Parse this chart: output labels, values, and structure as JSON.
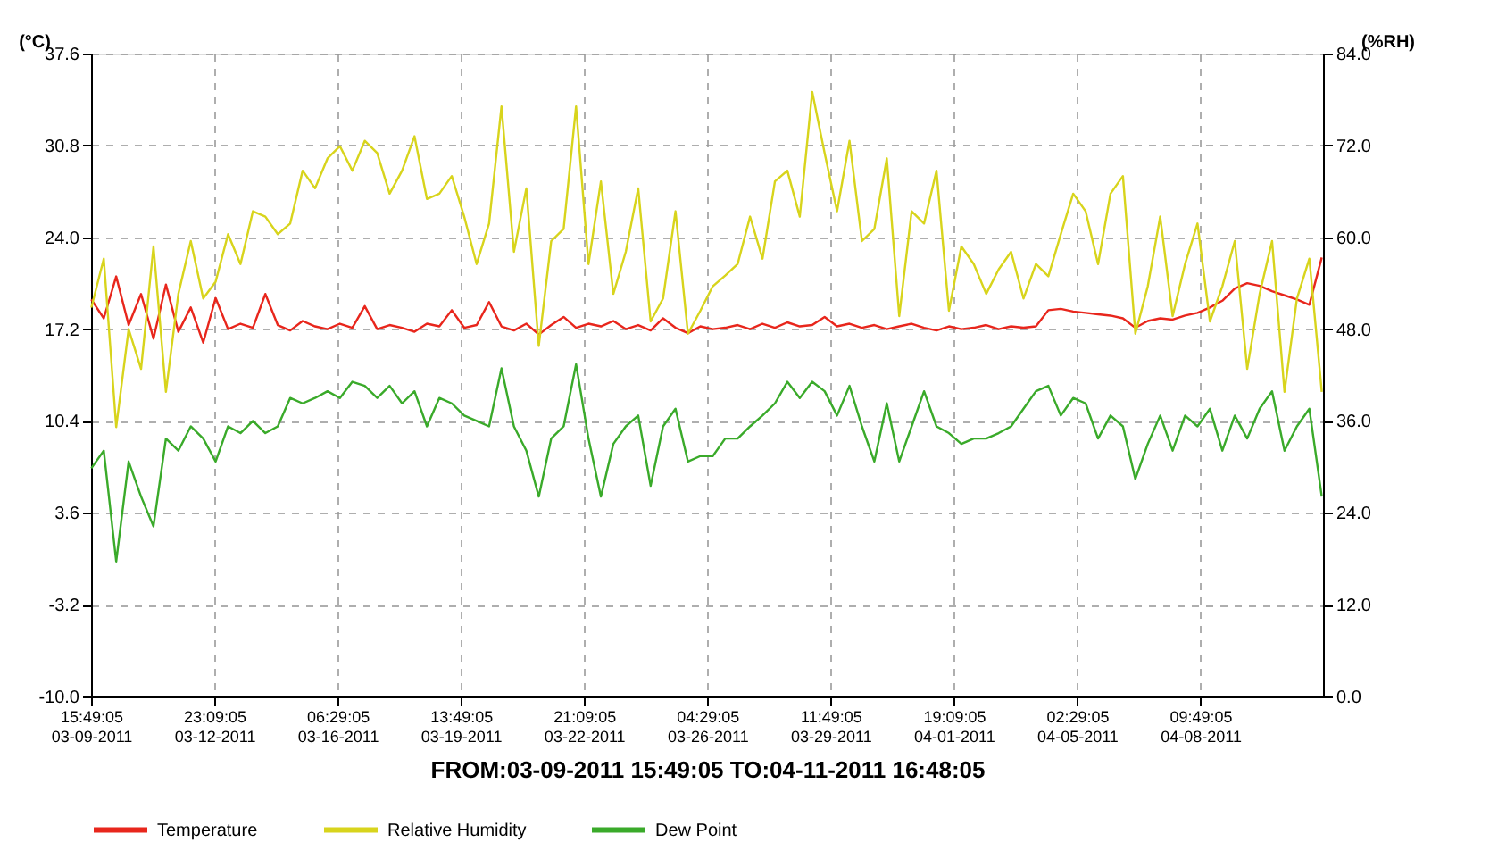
{
  "chart_data": {
    "type": "line",
    "xlabel": "FROM:03-09-2011 15:49:05     TO:04-11-2011 16:48:05",
    "ylabel": "(°C)",
    "y2label": "(%RH)",
    "x": [
      "2011-03-09T16:00",
      "2011-03-10T00:00",
      "2011-03-10T08:00",
      "2011-03-10T16:00",
      "2011-03-11T00:00",
      "2011-03-11T08:00",
      "2011-03-11T16:00",
      "2011-03-12T00:00",
      "2011-03-12T08:00",
      "2011-03-12T16:00",
      "2011-03-13T00:00",
      "2011-03-13T08:00",
      "2011-03-13T16:00",
      "2011-03-14T00:00",
      "2011-03-14T08:00",
      "2011-03-14T16:00",
      "2011-03-15T00:00",
      "2011-03-15T08:00",
      "2011-03-15T16:00",
      "2011-03-16T00:00",
      "2011-03-16T08:00",
      "2011-03-16T16:00",
      "2011-03-17T00:00",
      "2011-03-17T08:00",
      "2011-03-17T16:00",
      "2011-03-18T00:00",
      "2011-03-18T08:00",
      "2011-03-18T16:00",
      "2011-03-19T00:00",
      "2011-03-19T08:00",
      "2011-03-19T16:00",
      "2011-03-20T00:00",
      "2011-03-20T08:00",
      "2011-03-20T16:00",
      "2011-03-21T00:00",
      "2011-03-21T08:00",
      "2011-03-21T16:00",
      "2011-03-22T00:00",
      "2011-03-22T08:00",
      "2011-03-22T16:00",
      "2011-03-23T00:00",
      "2011-03-23T08:00",
      "2011-03-23T16:00",
      "2011-03-24T00:00",
      "2011-03-24T08:00",
      "2011-03-24T16:00",
      "2011-03-25T00:00",
      "2011-03-25T08:00",
      "2011-03-25T16:00",
      "2011-03-26T00:00",
      "2011-03-26T08:00",
      "2011-03-26T16:00",
      "2011-03-27T00:00",
      "2011-03-27T08:00",
      "2011-03-27T16:00",
      "2011-03-28T00:00",
      "2011-03-28T08:00",
      "2011-03-28T16:00",
      "2011-03-29T00:00",
      "2011-03-29T08:00",
      "2011-03-29T16:00",
      "2011-03-30T00:00",
      "2011-03-30T08:00",
      "2011-03-30T16:00",
      "2011-03-31T00:00",
      "2011-03-31T08:00",
      "2011-03-31T16:00",
      "2011-04-01T00:00",
      "2011-04-01T08:00",
      "2011-04-01T16:00",
      "2011-04-02T00:00",
      "2011-04-02T08:00",
      "2011-04-02T16:00",
      "2011-04-03T00:00",
      "2011-04-03T08:00",
      "2011-04-03T16:00",
      "2011-04-04T00:00",
      "2011-04-04T08:00",
      "2011-04-04T16:00",
      "2011-04-05T00:00",
      "2011-04-05T08:00",
      "2011-04-05T16:00",
      "2011-04-06T00:00",
      "2011-04-06T08:00",
      "2011-04-06T16:00",
      "2011-04-07T00:00",
      "2011-04-07T08:00",
      "2011-04-07T16:00",
      "2011-04-08T00:00",
      "2011-04-08T08:00",
      "2011-04-08T16:00",
      "2011-04-09T00:00",
      "2011-04-09T08:00",
      "2011-04-09T16:00",
      "2011-04-10T00:00",
      "2011-04-10T08:00",
      "2011-04-10T16:00",
      "2011-04-11T00:00",
      "2011-04-11T08:00",
      "2011-04-11T16:00"
    ],
    "series": [
      {
        "name": "Temperature",
        "color": "#e8261c",
        "values": [
          19.4,
          18.0,
          21.1,
          17.5,
          19.8,
          16.5,
          20.5,
          17.0,
          18.8,
          16.2,
          19.5,
          17.2,
          17.6,
          17.3,
          19.8,
          17.5,
          17.1,
          17.8,
          17.4,
          17.2,
          17.6,
          17.3,
          18.9,
          17.2,
          17.5,
          17.3,
          17.0,
          17.6,
          17.4,
          18.6,
          17.3,
          17.5,
          19.2,
          17.4,
          17.1,
          17.6,
          16.8,
          17.5,
          18.1,
          17.3,
          17.6,
          17.4,
          17.8,
          17.2,
          17.5,
          17.1,
          18.0,
          17.3,
          16.9,
          17.4,
          17.2,
          17.3,
          17.5,
          17.2,
          17.6,
          17.3,
          17.7,
          17.4,
          17.5,
          18.1,
          17.4,
          17.6,
          17.3,
          17.5,
          17.2,
          17.4,
          17.6,
          17.3,
          17.1,
          17.4,
          17.2,
          17.3,
          17.5,
          17.2,
          17.4,
          17.3,
          17.4,
          18.6,
          18.7,
          18.5,
          18.4,
          18.3,
          18.2,
          18.0,
          17.3,
          17.8,
          18.0,
          17.9,
          18.2,
          18.4,
          18.8,
          19.3,
          20.2,
          20.6,
          20.4,
          20.0,
          19.7,
          19.4,
          19.0,
          22.5
        ]
      },
      {
        "name": "Relative Humidity",
        "color": "#d8d41c",
        "axis": "y2",
        "values": [
          50.8,
          57.2,
          35.2,
          48.0,
          42.8,
          58.8,
          39.8,
          52.6,
          59.5,
          52.0,
          54.2,
          60.4,
          56.5,
          63.4,
          62.7,
          60.4,
          61.8,
          68.7,
          66.4,
          70.3,
          71.9,
          68.7,
          72.6,
          71.0,
          65.7,
          68.7,
          73.2,
          65.0,
          65.7,
          68.0,
          62.7,
          56.5,
          61.8,
          77.1,
          58.1,
          66.4,
          45.8,
          59.5,
          61.1,
          77.1,
          56.5,
          67.3,
          52.6,
          58.1,
          66.4,
          49.0,
          52.0,
          63.4,
          47.4,
          50.4,
          53.6,
          55.0,
          56.5,
          62.7,
          57.2,
          67.3,
          68.7,
          62.7,
          79.0,
          71.0,
          63.4,
          72.6,
          59.5,
          61.1,
          70.3,
          49.7,
          63.4,
          61.8,
          68.7,
          50.4,
          58.8,
          56.5,
          52.6,
          55.8,
          58.1,
          52.0,
          56.5,
          54.9,
          60.4,
          65.7,
          63.4,
          56.5,
          65.7,
          68.0,
          47.4,
          53.6,
          62.7,
          49.7,
          56.5,
          61.8,
          49.0,
          53.6,
          59.5,
          42.8,
          52.6,
          59.5,
          39.8,
          52.0,
          57.2,
          39.8
        ]
      },
      {
        "name": "Dew Point",
        "color": "#3aaa2a",
        "values": [
          6.9,
          8.2,
          0.0,
          7.4,
          4.8,
          2.6,
          9.1,
          8.2,
          10.0,
          9.1,
          7.4,
          10.0,
          9.5,
          10.4,
          9.5,
          10.0,
          12.1,
          11.7,
          12.1,
          12.6,
          12.1,
          13.3,
          13.0,
          12.1,
          13.0,
          11.7,
          12.6,
          10.0,
          12.1,
          11.7,
          10.8,
          10.4,
          10.0,
          14.3,
          10.0,
          8.2,
          4.8,
          9.1,
          10.0,
          14.6,
          9.1,
          4.8,
          8.7,
          10.0,
          10.8,
          5.6,
          10.0,
          11.3,
          7.4,
          7.8,
          7.8,
          9.1,
          9.1,
          10.0,
          10.8,
          11.7,
          13.3,
          12.1,
          13.3,
          12.6,
          10.8,
          13.0,
          10.0,
          7.4,
          11.7,
          7.4,
          10.0,
          12.6,
          10.0,
          9.5,
          8.7,
          9.1,
          9.1,
          9.5,
          10.0,
          11.3,
          12.6,
          13.0,
          10.8,
          12.1,
          11.7,
          9.1,
          10.8,
          10.0,
          6.1,
          8.7,
          10.8,
          8.2,
          10.8,
          10.0,
          11.3,
          8.2,
          10.8,
          9.1,
          11.3,
          12.6,
          8.2,
          10.0,
          11.3,
          4.8
        ]
      }
    ],
    "xlim": [
      "2011-03-09T15:49",
      "2011-04-11T16:48"
    ],
    "xticks": [
      {
        "value": "2011-03-09T15:49",
        "label": "15:49:05\n03-09-2011"
      },
      {
        "value": "2011-03-12T23:09",
        "label": "23:09:05\n03-12-2011"
      },
      {
        "value": "2011-03-16T06:29",
        "label": "06:29:05\n03-16-2011"
      },
      {
        "value": "2011-03-19T13:49",
        "label": "13:49:05\n03-19-2011"
      },
      {
        "value": "2011-03-22T21:09",
        "label": "21:09:05\n03-22-2011"
      },
      {
        "value": "2011-03-26T04:29",
        "label": "04:29:05\n03-26-2011"
      },
      {
        "value": "2011-03-29T11:49",
        "label": "11:49:05\n03-29-2011"
      },
      {
        "value": "2011-04-01T19:09",
        "label": "19:09:05\n04-01-2011"
      },
      {
        "value": "2011-04-05T02:29",
        "label": "02:29:05\n04-05-2011"
      },
      {
        "value": "2011-04-08T09:49",
        "label": "09:49:05\n04-08-2011"
      }
    ],
    "ylim": [
      -10,
      37.6
    ],
    "yticks": [
      {
        "value": -10,
        "label": "-10.0"
      },
      {
        "value": -3.2,
        "label": "-3.2"
      },
      {
        "value": 3.6,
        "label": "3.6"
      },
      {
        "value": 10.4,
        "label": "10.4"
      },
      {
        "value": 17.2,
        "label": "17.2"
      },
      {
        "value": 24,
        "label": "24.0"
      },
      {
        "value": 30.8,
        "label": "30.8"
      },
      {
        "value": 37.6,
        "label": "37.6"
      }
    ],
    "y2lim": [
      0,
      84
    ],
    "y2ticks": [
      {
        "value": 0,
        "label": "0.0"
      },
      {
        "value": 12,
        "label": "12.0"
      },
      {
        "value": 24,
        "label": "24.0"
      },
      {
        "value": 36,
        "label": "36.0"
      },
      {
        "value": 48,
        "label": "48.0"
      },
      {
        "value": 60,
        "label": "60.0"
      },
      {
        "value": 72,
        "label": "72.0"
      },
      {
        "value": 84,
        "label": "84.0"
      }
    ],
    "grid": true,
    "legend": "bottom",
    "marker": "none",
    "line_style": "solid"
  }
}
